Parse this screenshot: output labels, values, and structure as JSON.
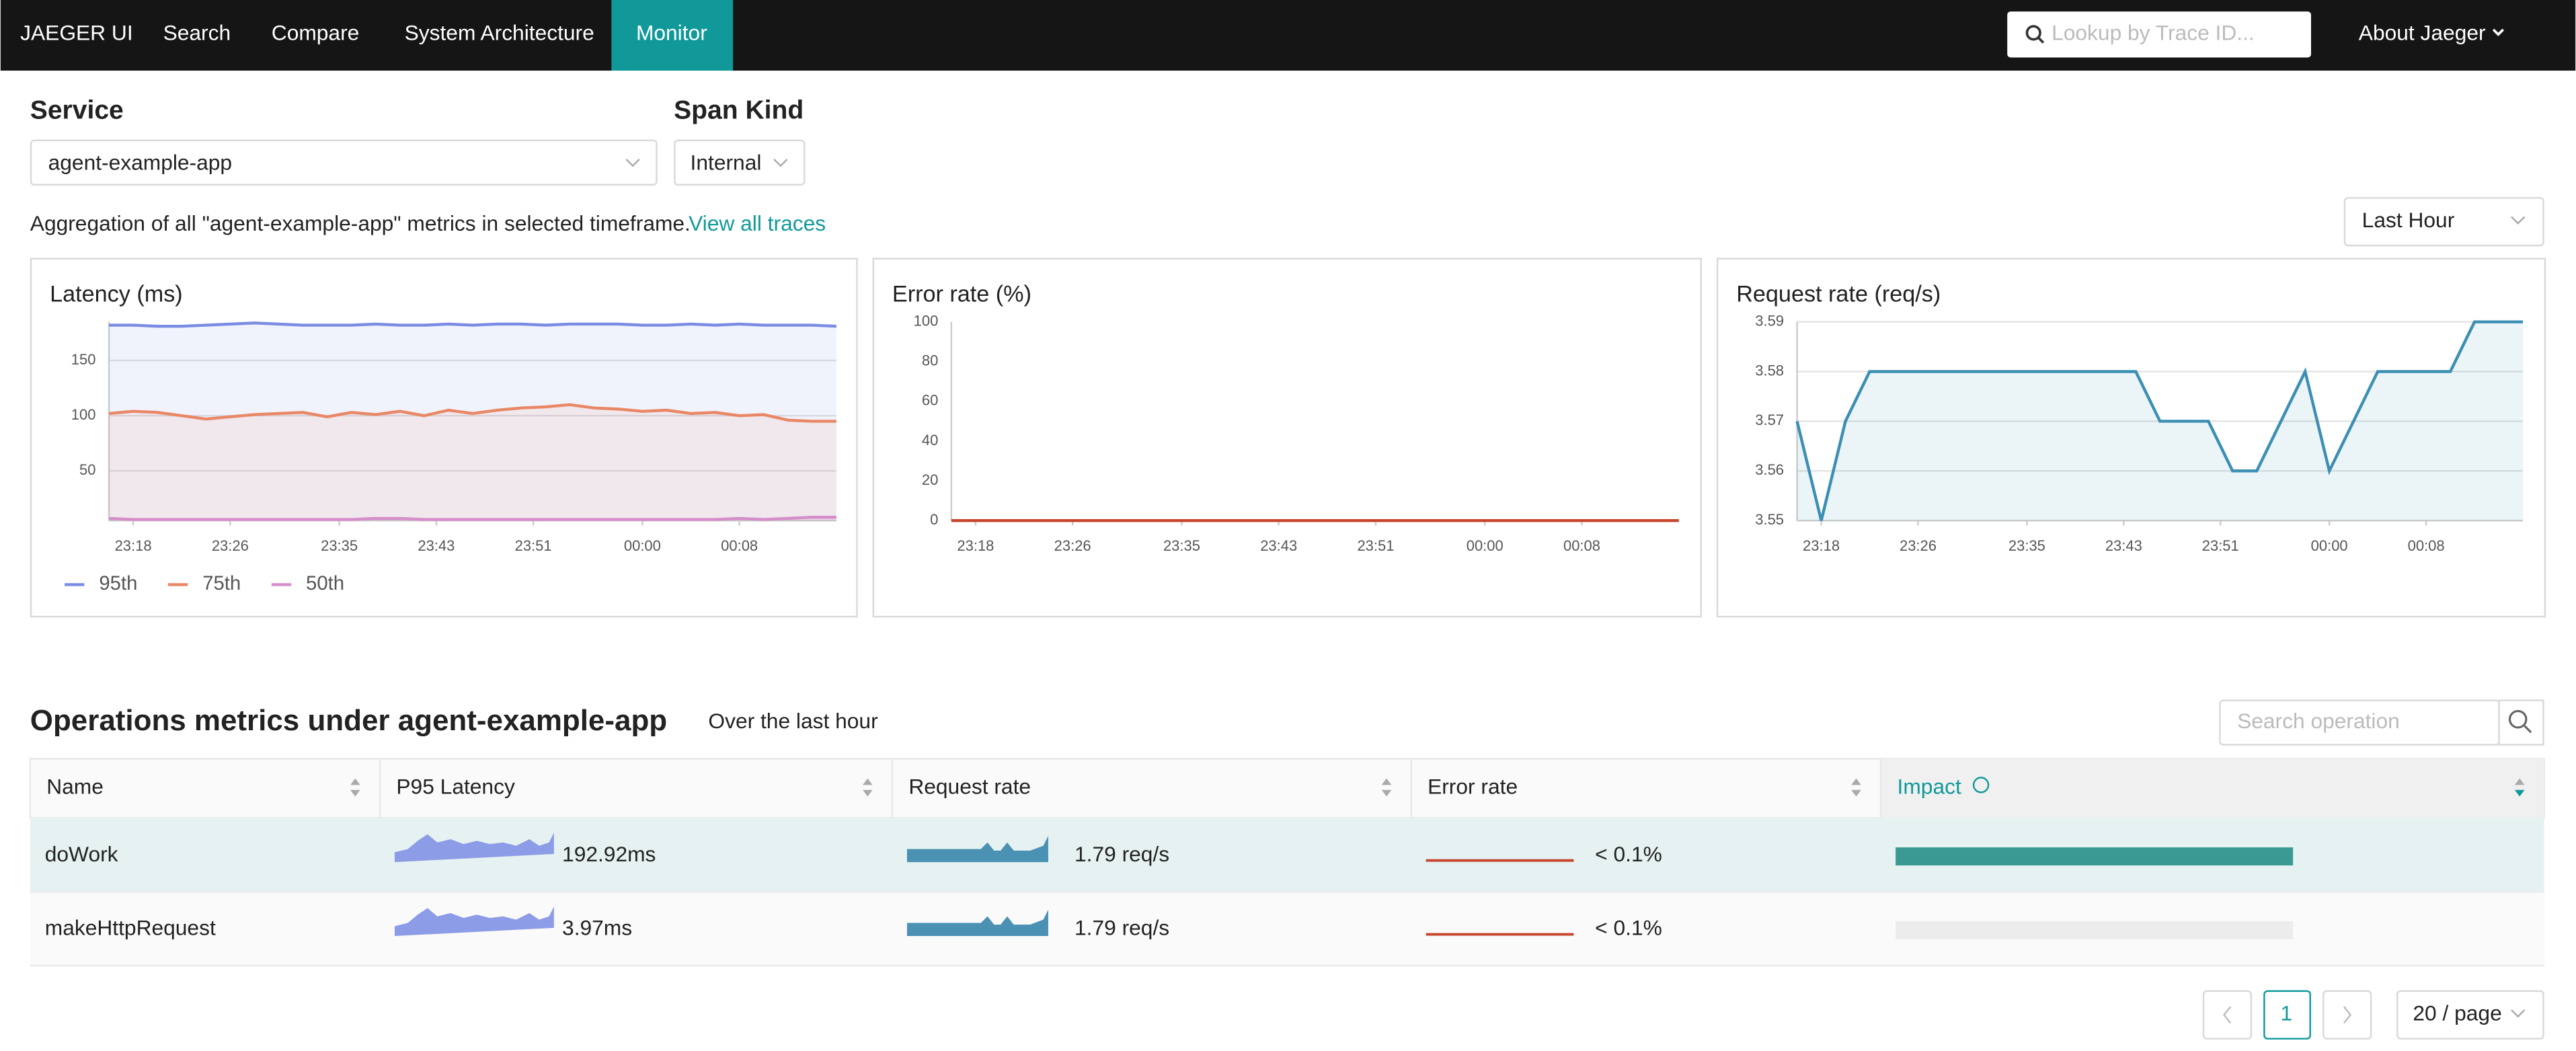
{
  "nav": {
    "brand": "JAEGER UI",
    "links": [
      "Search",
      "Compare",
      "System Architecture",
      "Monitor"
    ],
    "search_placeholder": "Lookup by Trace ID...",
    "about": "About Jaeger"
  },
  "filters": {
    "service_label": "Service",
    "service": "agent-example-app",
    "span_kind_label": "Span Kind",
    "span_kind": "Internal",
    "summary": "Aggregation of all \"agent-example-app\" metrics in selected timeframe.",
    "link": "View all traces",
    "timeframe": "Last Hour"
  },
  "chart_data": [
    {
      "type": "area",
      "title": "Latency (ms)",
      "x": [
        "23:16",
        "23:18",
        "23:20",
        "23:22",
        "23:24",
        "23:26",
        "23:28",
        "23:30",
        "23:32",
        "23:34",
        "23:36",
        "23:38",
        "23:40",
        "23:42",
        "23:44",
        "23:46",
        "23:48",
        "23:50",
        "23:52",
        "23:54",
        "23:56",
        "23:58",
        "00:00",
        "00:02",
        "00:04",
        "00:06",
        "00:08",
        "00:10",
        "00:12",
        "00:14",
        "00:16"
      ],
      "xticks": [
        "23:18",
        "23:26",
        "23:35",
        "23:43",
        "23:51",
        "00:00",
        "00:08"
      ],
      "ylim": [
        5,
        185
      ],
      "yticks": [
        50,
        100,
        150
      ],
      "grid": true,
      "series": [
        {
          "name": "95th",
          "color": "#7a8ce3",
          "values": [
            182,
            182,
            181,
            181,
            182,
            183,
            184,
            183,
            182,
            182,
            182,
            183,
            182,
            182,
            183,
            182,
            183,
            183,
            182,
            183,
            183,
            183,
            182,
            182,
            183,
            182,
            183,
            182,
            182,
            182,
            181
          ]
        },
        {
          "name": "75th",
          "color": "#e98866",
          "values": [
            102,
            104,
            103,
            100,
            97,
            99,
            101,
            102,
            103,
            99,
            103,
            101,
            104,
            100,
            105,
            102,
            105,
            107,
            108,
            110,
            107,
            106,
            104,
            105,
            102,
            103,
            100,
            101,
            96,
            95,
            95
          ]
        },
        {
          "name": "50th",
          "color": "#d58ecb",
          "values": [
            7,
            6,
            6,
            6,
            6,
            6,
            6,
            6,
            6,
            6,
            6,
            7,
            7,
            6,
            6,
            6,
            6,
            6,
            6,
            6,
            6,
            6,
            6,
            6,
            6,
            6,
            7,
            6,
            7,
            8,
            8
          ]
        }
      ]
    },
    {
      "type": "line",
      "title": "Error rate (%)",
      "x": [
        "23:16",
        "23:18",
        "23:20",
        "23:22",
        "23:24",
        "23:26",
        "23:28",
        "23:30",
        "23:32",
        "23:34",
        "23:36",
        "23:38",
        "23:40",
        "23:42",
        "23:44",
        "23:46",
        "23:48",
        "23:50",
        "23:52",
        "23:54",
        "23:56",
        "23:58",
        "00:00",
        "00:02",
        "00:04",
        "00:06",
        "00:08",
        "00:10",
        "00:12",
        "00:14",
        "00:16"
      ],
      "xticks": [
        "23:18",
        "23:26",
        "23:35",
        "23:43",
        "23:51",
        "00:00",
        "00:08"
      ],
      "ylim": [
        0,
        100
      ],
      "yticks": [
        0,
        20,
        40,
        60,
        80,
        100
      ],
      "grid": false,
      "series": [
        {
          "color": "#c6452c",
          "values": [
            0,
            0,
            0,
            0,
            0,
            0,
            0,
            0,
            0,
            0,
            0,
            0,
            0,
            0,
            0,
            0,
            0,
            0,
            0,
            0,
            0,
            0,
            0,
            0,
            0,
            0,
            0,
            0,
            0,
            0,
            0
          ]
        }
      ]
    },
    {
      "type": "area",
      "title": "Request rate (req/s)",
      "x": [
        "23:16",
        "23:18",
        "23:20",
        "23:22",
        "23:24",
        "23:26",
        "23:28",
        "23:30",
        "23:32",
        "23:34",
        "23:36",
        "23:38",
        "23:40",
        "23:42",
        "23:44",
        "23:46",
        "23:48",
        "23:50",
        "23:52",
        "23:54",
        "23:56",
        "23:58",
        "00:00",
        "00:02",
        "00:04",
        "00:06",
        "00:08",
        "00:10",
        "00:12",
        "00:14",
        "00:16"
      ],
      "xticks": [
        "23:18",
        "23:26",
        "23:35",
        "23:43",
        "23:51",
        "00:00",
        "00:08"
      ],
      "ylim": [
        3.55,
        3.59
      ],
      "yticks": [
        3.55,
        3.56,
        3.57,
        3.58,
        3.59
      ],
      "grid": true,
      "series": [
        {
          "color": "#3c8fb3",
          "values": [
            3.57,
            3.55,
            3.57,
            3.58,
            3.58,
            3.58,
            3.58,
            3.58,
            3.58,
            3.58,
            3.58,
            3.58,
            3.58,
            3.58,
            3.58,
            3.57,
            3.57,
            3.57,
            3.56,
            3.56,
            3.57,
            3.58,
            3.56,
            3.57,
            3.58,
            3.58,
            3.58,
            3.58,
            3.59,
            3.59,
            3.59
          ]
        }
      ]
    }
  ],
  "operations": {
    "title": "Operations metrics under agent-example-app",
    "subtitle": "Over the last hour",
    "search_placeholder": "Search operation",
    "columns": [
      "Name",
      "P95 Latency",
      "Request rate",
      "Error rate",
      "Impact"
    ],
    "rows": [
      {
        "name": "doWork",
        "p95_latency": "192.92ms",
        "request_rate": "1.79 req/s",
        "error_rate": "< 0.1%",
        "impact": 1
      },
      {
        "name": "makeHttpRequest",
        "p95_latency": "3.97ms",
        "request_rate": "1.79 req/s",
        "error_rate": "< 0.1%",
        "impact": 0
      }
    ]
  },
  "pagination": {
    "current": 1,
    "page_size": "20 / page"
  }
}
